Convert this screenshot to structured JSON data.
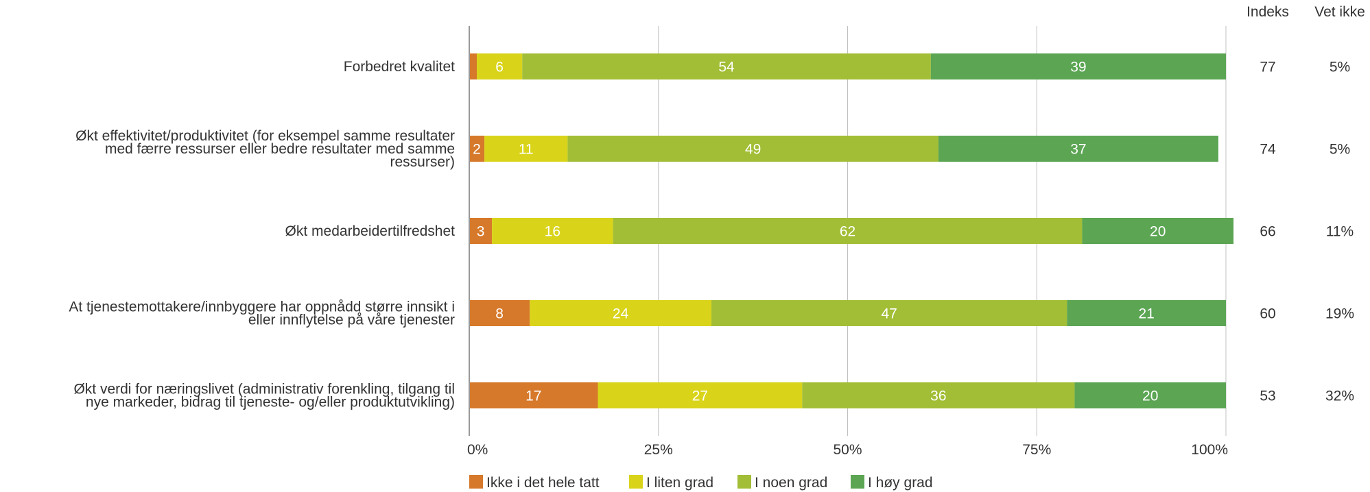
{
  "chart_data": {
    "type": "bar",
    "orientation": "horizontal",
    "stacked": true,
    "percent_stacked": true,
    "title": "",
    "xlabel": "",
    "ylabel": "",
    "xlim": [
      0,
      100
    ],
    "x_ticks": [
      0,
      25,
      50,
      75,
      100
    ],
    "x_tick_labels": [
      "0%",
      "25%",
      "50%",
      "75%",
      "100%"
    ],
    "grid": true,
    "legend_position": "bottom",
    "categories": [
      "Forbedret kvalitet",
      "Økt effektivitet/produktivitet (for eksempel samme resultater med færre ressurser eller bedre resultater med samme ressurser)",
      "Økt medarbeidertilfredshet",
      "At tjenestemottakere/innbyggere har oppnådd større innsikt i eller innflytelse på våre tjenester",
      "Økt verdi for næringslivet (administrativ forenkling, tilgang til nye markeder, bidrag til tjeneste- og/eller produktutvikling)"
    ],
    "category_lines": [
      [
        "Forbedret kvalitet"
      ],
      [
        "Økt effektivitet/produktivitet (for eksempel samme resultater",
        "med færre ressurser eller bedre resultater med samme",
        "ressurser)"
      ],
      [
        "Økt medarbeidertilfredshet"
      ],
      [
        "At tjenestemottakere/innbyggere har oppnådd større innsikt i",
        "eller innflytelse på våre tjenester"
      ],
      [
        "Økt verdi for næringslivet (administrativ forenkling, tilgang til",
        "nye markeder, bidrag til tjeneste- og/eller produktutvikling)"
      ]
    ],
    "series": [
      {
        "name": "Ikke i det hele tatt",
        "color": "#D6792A",
        "values": [
          1,
          2,
          3,
          8,
          17
        ],
        "labels": [
          "",
          "2",
          "3",
          "8",
          "17"
        ]
      },
      {
        "name": "I liten grad",
        "color": "#D9D41A",
        "values": [
          6,
          11,
          16,
          24,
          27
        ],
        "labels": [
          "6",
          "11",
          "16",
          "24",
          "27"
        ]
      },
      {
        "name": "I noen grad",
        "color": "#A2BE36",
        "values": [
          54,
          49,
          62,
          47,
          36
        ],
        "labels": [
          "54",
          "49",
          "62",
          "47",
          "36"
        ]
      },
      {
        "name": "I høy grad",
        "color": "#5BA553",
        "values": [
          39,
          37,
          20,
          21,
          20
        ],
        "labels": [
          "39",
          "37",
          "20",
          "21",
          "20"
        ]
      }
    ],
    "extra_columns": [
      {
        "header": "Indeks",
        "values": [
          "77",
          "74",
          "66",
          "60",
          "53"
        ]
      },
      {
        "header": "Vet ikke",
        "values": [
          "5%",
          "5%",
          "11%",
          "19%",
          "32%"
        ]
      }
    ],
    "colors": {
      "grid": "#C0C0C0",
      "axis": "#999999",
      "text": "#333333",
      "bar_label": "#FFFFFF"
    }
  }
}
